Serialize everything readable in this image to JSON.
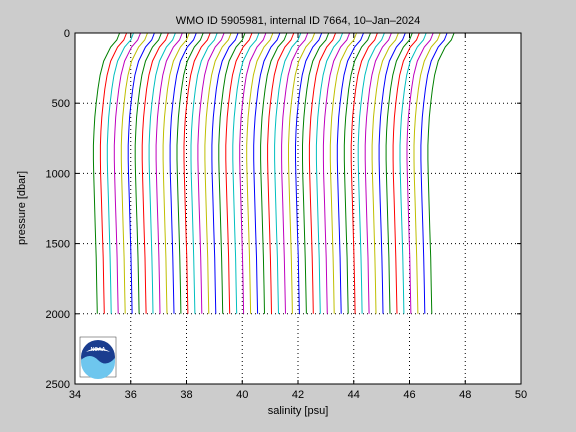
{
  "chart_data": {
    "type": "line",
    "title": "WMO ID 5905981, internal ID 7664, 10–Jan–2024",
    "xlabel": "salinity [psu]",
    "ylabel": "pressure [dbar]",
    "xlim": [
      34,
      50
    ],
    "ylim": [
      2500,
      0
    ],
    "x_reversed": false,
    "y_reversed": true,
    "xticks": [
      "34",
      "36",
      "38",
      "40",
      "42",
      "44",
      "46",
      "48",
      "50"
    ],
    "yticks": [
      "0",
      "500",
      "1000",
      "1500",
      "2000",
      "2500"
    ],
    "grid": true,
    "profile_depths": [
      0,
      50,
      100,
      200,
      300,
      400,
      500,
      600,
      700,
      800,
      900,
      1000,
      1200,
      1400,
      1600,
      1800,
      2000
    ],
    "profile_shape": [
      0.92,
      0.82,
      0.6,
      0.35,
      0.22,
      0.14,
      0.08,
      0.03,
      0.0,
      -0.02,
      -0.02,
      -0.01,
      0.02,
      0.05,
      0.08,
      0.1,
      0.12
    ],
    "profile_offsets": [
      34.68,
      34.93,
      35.18,
      35.43,
      35.68,
      35.93,
      36.18,
      36.43,
      36.68,
      36.93,
      37.18,
      37.43,
      37.68,
      37.93,
      38.18,
      38.43,
      38.68,
      38.93,
      39.18,
      39.43,
      39.68,
      39.93,
      40.18,
      40.43,
      40.68,
      40.93,
      41.18,
      41.43,
      41.68,
      41.93,
      42.18,
      42.43,
      42.68,
      42.93,
      43.18,
      43.43,
      43.68,
      43.93,
      44.18,
      44.43,
      44.68,
      44.93,
      45.18,
      45.43,
      45.68,
      45.93,
      46.18,
      46.43,
      46.68
    ],
    "series_colors": [
      "#008000",
      "#ff0000",
      "#00bfbf",
      "#bf00bf",
      "#bfbf00",
      "#0000ff"
    ],
    "logo": "noaa-logo"
  }
}
